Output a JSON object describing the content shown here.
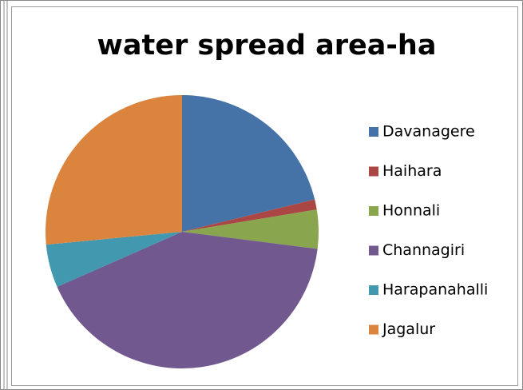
{
  "chart_data": {
    "type": "pie",
    "title": "water spread area-ha",
    "categories": [
      "Davanagere",
      "Haihara",
      "Honnali",
      "Channagiri",
      "Harapanahalli",
      "Jagalur"
    ],
    "values": [
      21.2,
      1.2,
      4.6,
      41.4,
      5.1,
      26.5
    ],
    "colors": [
      "#4572a7",
      "#aa4643",
      "#89a54e",
      "#71588f",
      "#4198af",
      "#db843d"
    ],
    "legend": "right"
  }
}
